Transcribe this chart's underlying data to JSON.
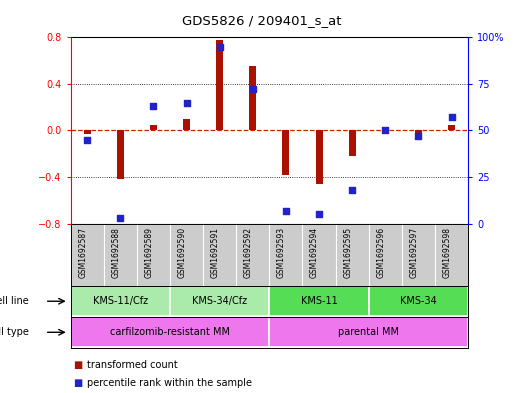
{
  "title": "GDS5826 / 209401_s_at",
  "samples": [
    "GSM1692587",
    "GSM1692588",
    "GSM1692589",
    "GSM1692590",
    "GSM1692591",
    "GSM1692592",
    "GSM1692593",
    "GSM1692594",
    "GSM1692595",
    "GSM1692596",
    "GSM1692597",
    "GSM1692598"
  ],
  "transformed_count": [
    -0.03,
    -0.42,
    0.05,
    0.1,
    0.78,
    0.55,
    -0.38,
    -0.46,
    -0.22,
    -0.02,
    -0.02,
    0.05
  ],
  "percentile_rank": [
    45,
    3,
    63,
    65,
    95,
    72,
    7,
    5,
    18,
    50,
    47,
    57
  ],
  "cell_line_groups": [
    {
      "label": "KMS-11/Cfz",
      "start": 0,
      "end": 2
    },
    {
      "label": "KMS-34/Cfz",
      "start": 3,
      "end": 5
    },
    {
      "label": "KMS-11",
      "start": 6,
      "end": 8
    },
    {
      "label": "KMS-34",
      "start": 9,
      "end": 11
    }
  ],
  "cell_line_colors": [
    "#aaeaaa",
    "#aaeaaa",
    "#55dd55",
    "#55dd55"
  ],
  "cell_type_groups": [
    {
      "label": "carfilzomib-resistant MM",
      "start": 0,
      "end": 5
    },
    {
      "label": "parental MM",
      "start": 6,
      "end": 11
    }
  ],
  "cell_type_color": "#ee77ee",
  "bar_color": "#aa1100",
  "dot_color": "#2222cc",
  "ylim": [
    -0.8,
    0.8
  ],
  "y2lim": [
    0,
    100
  ],
  "y_ticks": [
    -0.8,
    -0.4,
    0.0,
    0.4,
    0.8
  ],
  "y2_ticks": [
    0,
    25,
    50,
    75,
    100
  ],
  "zero_line_color": "#cc2200",
  "dotted_line_color": "#555555",
  "background_color": "#ffffff",
  "sample_bg_color": "#cccccc",
  "legend_items": [
    {
      "label": "transformed count",
      "color": "#aa1100"
    },
    {
      "label": "percentile rank within the sample",
      "color": "#2222cc"
    }
  ]
}
